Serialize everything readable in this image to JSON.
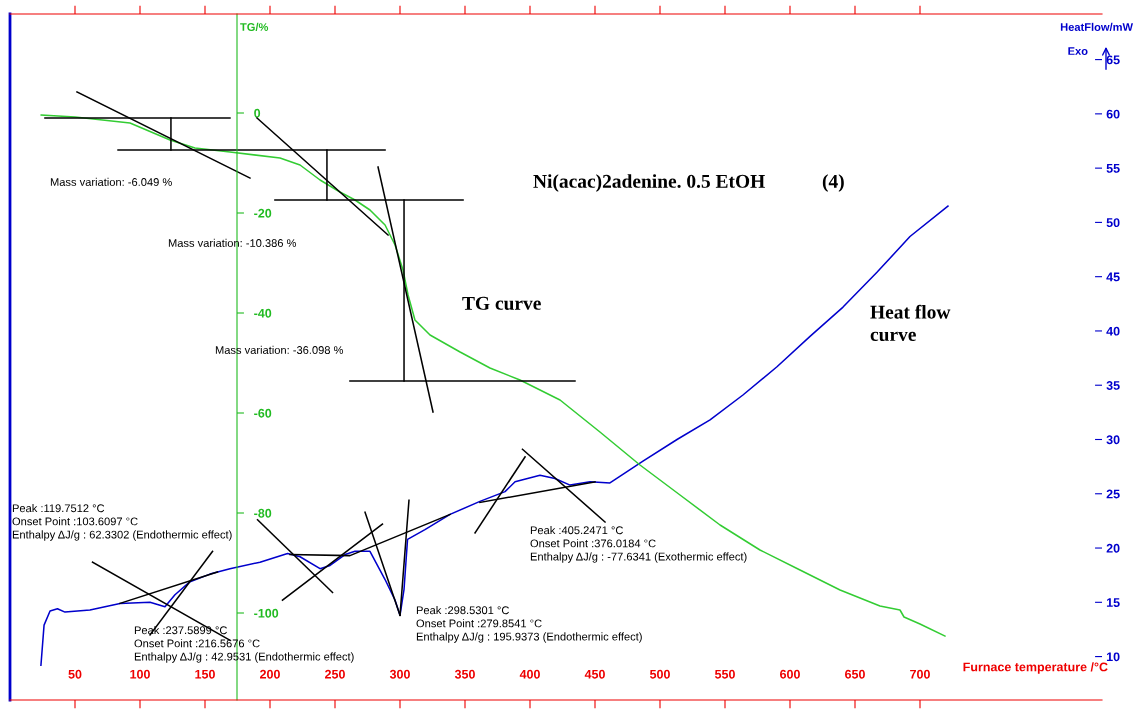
{
  "chart_data": {
    "type": "line",
    "title": "Ni(acac)2adenine. 0.5 EtOH",
    "xlabel": "Furnace temperature /°C",
    "ylabel": "TG/%",
    "y2label": "HeatFlow/mW",
    "xlim": [
      0,
      840
    ],
    "xticks": [
      50,
      100,
      150,
      200,
      250,
      300,
      350,
      400,
      450,
      500,
      550,
      600,
      650,
      700
    ],
    "ylim": [
      -117.4,
      19.8
    ],
    "yticks": [
      0,
      -20,
      -40,
      -60,
      -80,
      -100
    ],
    "y2lim": [
      6.0,
      69.2
    ],
    "y2ticks": [
      10,
      15,
      20,
      25,
      30,
      35,
      40,
      45,
      50,
      55,
      60,
      65
    ],
    "grid": false,
    "marker": "none",
    "line_style": "solid",
    "annotations": [
      "Mass variation: -6.049 %",
      "Mass variation: -10.386 %",
      "Mass variation: -36.098 %",
      "TG curve",
      "Heat flow\ncurve",
      "(4)",
      "Peak :119.7512 °C\nOnset Point :103.6097 °C\nEnthalpy ΔJ/g : 62.3302 (Endothermic effect)",
      "Peak :237.5899 °C\nOnset Point :216.5676 °C\nEnthalpy ΔJ/g : 42.9531 (Endothermic effect)",
      "Peak :298.5301 °C\nOnset Point :279.8541 °C\nEnthalpy ΔJ/g : 195.9373 (Endothermic effect)",
      "Peak :405.2471 °C\nOnset Point :376.0184 °C\nEnthalpy ΔJ/g : -77.6341 (Exothermic effect)",
      "Exo"
    ],
    "series": [
      {
        "color": "#33cc33",
        "axis": "y",
        "x": [
          24,
          50,
          92.3,
          123.1,
          142.3,
          169.2,
          207.7,
          223.1,
          238.5,
          253.8,
          265.4,
          276.9,
          288.5,
          296.2,
          302.3,
          306.2,
          311.5,
          323.1,
          346.2,
          369.2,
          392.3,
          423.1,
          453.8,
          484.6,
          515.4,
          546.2,
          576.9,
          607.7,
          638.5,
          669.2,
          684.6,
          687.7,
          700,
          719.2
        ],
        "values": [
          -0.4,
          -0.8,
          -2.0,
          -5.4,
          -7.0,
          -7.8,
          -9.0,
          -10.4,
          -13.4,
          -15.8,
          -17.4,
          -19.4,
          -22.4,
          -26.4,
          -31.4,
          -36.4,
          -41.4,
          -44.4,
          -47.8,
          -51.0,
          -53.4,
          -57.4,
          -63.8,
          -70.4,
          -76.4,
          -82.4,
          -87.4,
          -91.4,
          -95.4,
          -98.6,
          -99.4,
          -100.8,
          -102.2,
          -104.6
        ]
      },
      {
        "color": "#0000cc",
        "axis": "y2",
        "x": [
          23.8,
          26.2,
          30.8,
          36.5,
          42.3,
          61.5,
          84.6,
          107.7,
          119.2,
          126.9,
          138.5,
          153.8,
          169.2,
          192.3,
          213.5,
          223.1,
          238.5,
          246.2,
          257.7,
          265.4,
          276.9,
          288.5,
          296.2,
          300,
          303.1,
          305.8,
          319.2,
          338.5,
          361.5,
          380.8,
          388.5,
          407.7,
          419.2,
          430.8,
          446.2,
          461.5,
          486.9,
          513.1,
          538.5,
          563.8,
          590,
          615.4,
          640.8,
          666.9,
          692.3,
          721.5
        ],
        "values": [
          9.2,
          12.9,
          14.2,
          14.4,
          14.1,
          14.3,
          14.9,
          15.0,
          14.6,
          15.7,
          16.9,
          17.6,
          18.1,
          18.7,
          19.5,
          19.2,
          18.1,
          18.4,
          19.4,
          19.7,
          19.7,
          17.1,
          15.2,
          13.8,
          16.2,
          20.8,
          21.7,
          23.1,
          24.3,
          25.2,
          26.1,
          26.7,
          26.4,
          25.8,
          26.1,
          26.0,
          28.0,
          30.0,
          31.8,
          34.1,
          36.7,
          39.5,
          42.2,
          45.4,
          48.7,
          51.5
        ]
      },
      {
        "color": "#000000",
        "axis": "y",
        "x": [
          26.9,
          169.2
        ],
        "values": [
          -1.0,
          -1.0
        ]
      },
      {
        "color": "#000000",
        "axis": "y",
        "x": [
          83.1,
          288.5
        ],
        "values": [
          -7.4,
          -7.4
        ]
      },
      {
        "color": "#000000",
        "axis": "y",
        "x": [
          51.5,
          184.6
        ],
        "values": [
          4.2,
          -13.0
        ]
      },
      {
        "color": "#000000",
        "axis": "y",
        "x": [
          203.8,
          348.5
        ],
        "values": [
          -17.4,
          -17.4
        ]
      },
      {
        "color": "#000000",
        "axis": "y",
        "x": [
          190,
          290.8
        ],
        "values": [
          -1.0,
          -24.4
        ]
      },
      {
        "color": "#000000",
        "axis": "y",
        "x": [
          261.5,
          434.6
        ],
        "values": [
          -53.6,
          -53.6
        ]
      },
      {
        "color": "#000000",
        "axis": "y",
        "x": [
          283.1,
          325.4
        ],
        "values": [
          -10.8,
          -59.8
        ]
      },
      {
        "color": "#000000",
        "axis": "y",
        "x": [
          123.8,
          123.8
        ],
        "values": [
          -1.0,
          -7.4
        ]
      },
      {
        "color": "#000000",
        "axis": "y",
        "x": [
          243.8,
          243.8
        ],
        "values": [
          -7.4,
          -17.4
        ]
      },
      {
        "color": "#000000",
        "axis": "y",
        "x": [
          303.1,
          303.1
        ],
        "values": [
          -17.4,
          -53.6
        ]
      },
      {
        "color": "#000000",
        "axis": "y2",
        "x": [
          84.6,
          159.6
        ],
        "values": [
          14.9,
          17.8
        ]
      },
      {
        "color": "#000000",
        "axis": "y2",
        "x": [
          63.5,
          169.2
        ],
        "values": [
          18.7,
          11.5
        ]
      },
      {
        "color": "#000000",
        "axis": "y2",
        "x": [
          107.7,
          155.8
        ],
        "values": [
          12.0,
          19.7
        ]
      },
      {
        "color": "#000000",
        "axis": "y2",
        "x": [
          215.4,
          261.5,
          338.5
        ],
        "values": [
          19.4,
          19.3,
          23.1
        ]
      },
      {
        "color": "#000000",
        "axis": "y2",
        "x": [
          190.4,
          248.1
        ],
        "values": [
          22.6,
          15.9
        ]
      },
      {
        "color": "#000000",
        "axis": "y2",
        "x": [
          209.6,
          286.5
        ],
        "values": [
          15.2,
          22.2
        ]
      },
      {
        "color": "#000000",
        "axis": "y2",
        "x": [
          273.1,
          300
        ],
        "values": [
          23.3,
          13.8
        ]
      },
      {
        "color": "#000000",
        "axis": "y2",
        "x": [
          300,
          306.9
        ],
        "values": [
          13.8,
          24.4
        ]
      },
      {
        "color": "#000000",
        "axis": "y2",
        "x": [
          361.5,
          450
        ],
        "values": [
          24.2,
          26.1
        ]
      },
      {
        "color": "#000000",
        "axis": "y2",
        "x": [
          357.7,
          396.2
        ],
        "values": [
          21.4,
          28.4
        ]
      },
      {
        "color": "#000000",
        "axis": "y2",
        "x": [
          394.2,
          457.7
        ],
        "values": [
          29.1,
          22.4
        ]
      }
    ]
  }
}
